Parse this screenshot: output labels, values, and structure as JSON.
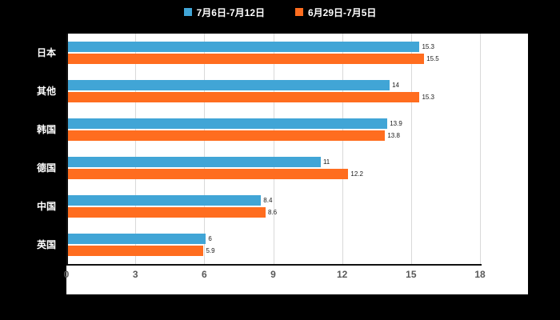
{
  "legend": [
    {
      "label": "7月6日-7月12日",
      "color": "#41A5D6"
    },
    {
      "label": "6月29日-7月5日",
      "color": "#FF6D1F"
    }
  ],
  "chart_data": {
    "type": "bar",
    "orientation": "horizontal",
    "title": "",
    "categories": [
      "日本",
      "其他",
      "韩国",
      "德国",
      "中国",
      "英国"
    ],
    "series": [
      {
        "name": "7月6日-7月12日",
        "color": "#41A5D6",
        "values": [
          15.3,
          14,
          13.9,
          11,
          8.4,
          6
        ]
      },
      {
        "name": "6月29日-7月5日",
        "color": "#FF6D1F",
        "values": [
          15.5,
          15.3,
          13.8,
          12.2,
          8.6,
          5.9
        ]
      }
    ],
    "xlim": [
      0,
      18
    ],
    "xticks": [
      0,
      3,
      6,
      9,
      12,
      15,
      18
    ],
    "grid": true,
    "legend_position": "top"
  },
  "colors": {
    "background": "#000000",
    "plot_background": "#ffffff",
    "gridline": "#d9d9d9",
    "axis": "#111111",
    "tick_label": "#595959",
    "category_label": "#ffffff",
    "data_label": "#1a1a1a"
  }
}
